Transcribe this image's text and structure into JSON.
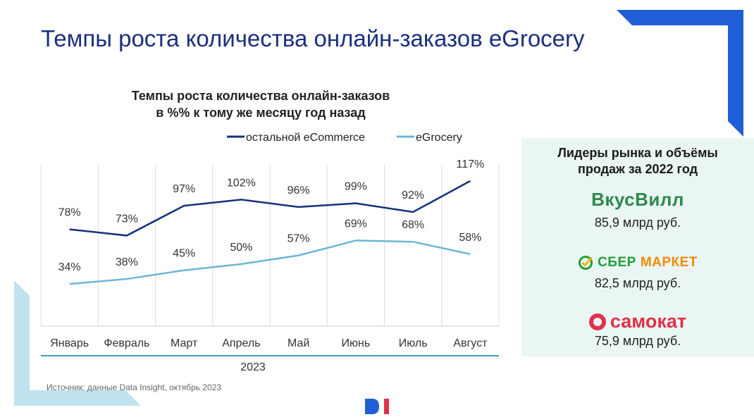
{
  "slide": {
    "title": "Темпы роста количества онлайн-заказов eGrocery",
    "source": "Источник: данные Data Insight, октябрь 2023",
    "footer_logo": "DI"
  },
  "colors": {
    "title": "#1b2f80",
    "ecommerce_line": "#15307a",
    "egrocery_line": "#6ab7d4",
    "corner_blue": "#1f5ed6",
    "corner_light": "#bfe2ee",
    "panel_bg": "#eaf6f3"
  },
  "chart_data": {
    "type": "line",
    "title": "Темпы роста количества онлайн-заказов в %% к тому же месяцу год назад",
    "title_lines": [
      "Темпы роста количества онлайн-заказов",
      "в %% к тому же месяцу год назад"
    ],
    "categories": [
      "Январь",
      "Февраль",
      "Март",
      "Апрель",
      "Май",
      "Июнь",
      "Июль",
      "Август"
    ],
    "xlabel": "2023",
    "ylabel": "",
    "ylim": [
      0,
      130
    ],
    "grid": "vertical",
    "legend": "top-right",
    "series": [
      {
        "name": "остальной eCommerce",
        "values": [
          78,
          73,
          97,
          102,
          96,
          99,
          92,
          117
        ],
        "labels": [
          "78%",
          "73%",
          "97%",
          "102%",
          "96%",
          "99%",
          "92%",
          "117%"
        ]
      },
      {
        "name": "eGrocery",
        "values": [
          34,
          38,
          45,
          50,
          57,
          69,
          68,
          58
        ],
        "labels": [
          "34%",
          "38%",
          "45%",
          "50%",
          "57%",
          "69%",
          "68%",
          "58%"
        ]
      }
    ]
  },
  "leaders": {
    "title_lines": [
      "Лидеры рынка и объёмы",
      "продаж за 2022 год"
    ],
    "items": [
      {
        "brand": "ВкусВилл",
        "value": "85,9 млрд руб."
      },
      {
        "brand_part1": "СБЕР",
        "brand_part2": "МАРКЕТ",
        "value": "82,5 млрд руб."
      },
      {
        "brand": "самокат",
        "value": "75,9 млрд руб."
      }
    ]
  }
}
